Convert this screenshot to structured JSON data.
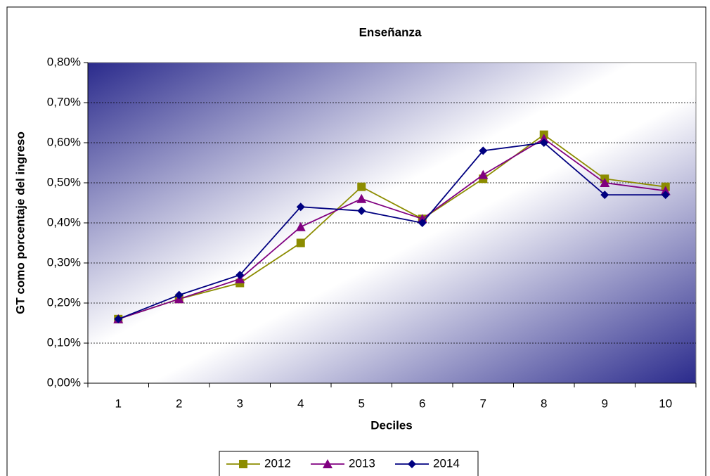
{
  "chart_data": {
    "type": "line",
    "title": "Enseñanza",
    "x_label": "Deciles",
    "y_label": "GT como porcentaje del ingreso",
    "categories": [
      "1",
      "2",
      "3",
      "4",
      "5",
      "6",
      "7",
      "8",
      "9",
      "10"
    ],
    "series": [
      {
        "name": "2012",
        "color": "#8c8c00",
        "marker": "square",
        "values": [
          0.16,
          0.21,
          0.25,
          0.35,
          0.49,
          0.41,
          0.51,
          0.62,
          0.51,
          0.49
        ]
      },
      {
        "name": "2013",
        "color": "#800080",
        "marker": "triangle",
        "values": [
          0.16,
          0.21,
          0.26,
          0.39,
          0.46,
          0.41,
          0.52,
          0.61,
          0.5,
          0.48
        ]
      },
      {
        "name": "2014",
        "color": "#000080",
        "marker": "diamond",
        "values": [
          0.16,
          0.22,
          0.27,
          0.44,
          0.43,
          0.4,
          0.58,
          0.6,
          0.47,
          0.47
        ]
      }
    ],
    "ylim": [
      0,
      0.8
    ],
    "yticks": [
      {
        "value": 0,
        "label": "0,00%"
      },
      {
        "value": 0.1,
        "label": "0,10%"
      },
      {
        "value": 0.2,
        "label": "0,20%"
      },
      {
        "value": 0.3,
        "label": "0,30%"
      },
      {
        "value": 0.4,
        "label": "0,40%"
      },
      {
        "value": 0.5,
        "label": "0,50%"
      },
      {
        "value": 0.6,
        "label": "0,60%"
      },
      {
        "value": 0.7,
        "label": "0,70%"
      },
      {
        "value": 0.8,
        "label": "0,80%"
      }
    ],
    "grid": true,
    "legend": "bottom"
  }
}
